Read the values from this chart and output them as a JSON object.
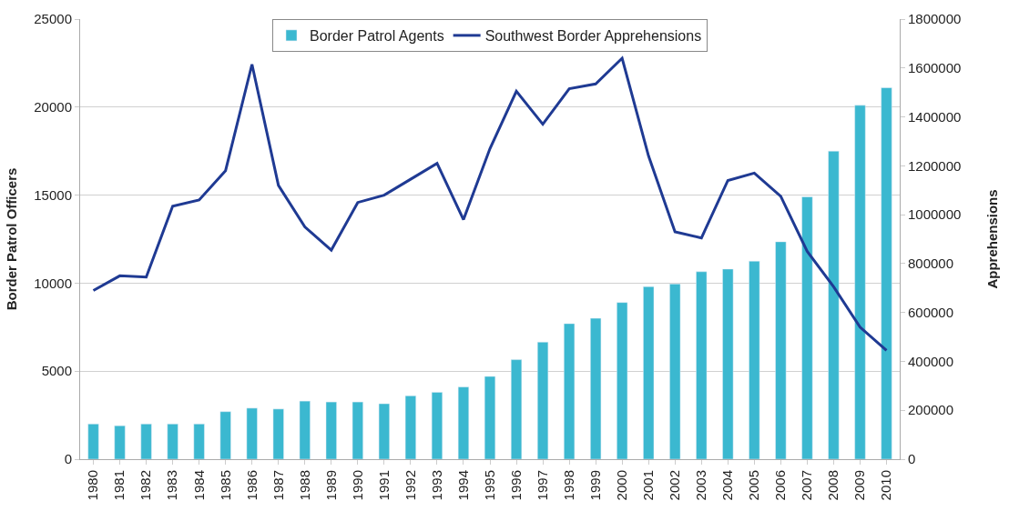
{
  "chart_data": {
    "type": "bar",
    "ylabel": "Border Patrol Officers",
    "y2label": "Apprehensions",
    "categories": [
      "1980",
      "1981",
      "1982",
      "1983",
      "1984",
      "1985",
      "1986",
      "1987",
      "1988",
      "1989",
      "1990",
      "1991",
      "1992",
      "1993",
      "1994",
      "1995",
      "1996",
      "1997",
      "1998",
      "1999",
      "2000",
      "2001",
      "2002",
      "2003",
      "2004",
      "2005",
      "2006",
      "2007",
      "2008",
      "2009",
      "2010"
    ],
    "series": [
      {
        "name": "Border Patrol Agents",
        "color": "#3bb8d0",
        "values": [
          2000,
          1900,
          2000,
          2000,
          2000,
          2700,
          2900,
          2850,
          3300,
          3250,
          3250,
          3150,
          3600,
          3800,
          4100,
          4700,
          5650,
          6650,
          7700,
          8000,
          8900,
          9800,
          9950,
          10650,
          10800,
          11250,
          12350,
          14900,
          17500,
          20100,
          21100
        ]
      },
      {
        "name": "Southwest Border Apprehensions",
        "type": "line",
        "axis": "y2",
        "color": "#1f3a93",
        "values": [
          690000,
          750000,
          745000,
          1035000,
          1060000,
          1180000,
          1615000,
          1120000,
          950000,
          855000,
          1050000,
          1080000,
          1145000,
          1210000,
          980000,
          1270000,
          1505000,
          1370000,
          1515000,
          1535000,
          1640000,
          1240000,
          930000,
          905000,
          1140000,
          1170000,
          1075000,
          850000,
          705000,
          540000,
          445000
        ]
      }
    ],
    "ylim": [
      0,
      25000
    ],
    "yticks": [
      0,
      5000,
      10000,
      15000,
      20000,
      25000
    ],
    "y2lim": [
      0,
      1800000
    ],
    "y2ticks": [
      0,
      200000,
      400000,
      600000,
      800000,
      1000000,
      1200000,
      1400000,
      1600000,
      1800000
    ],
    "grid": "y",
    "legend": "top",
    "line_style": "solid",
    "marker": "none"
  }
}
